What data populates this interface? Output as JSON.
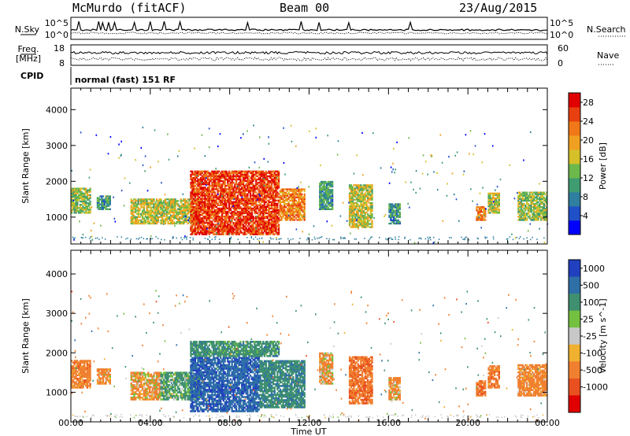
{
  "header": {
    "station": "McMurdo (fitACF)",
    "beam": "Beam 00",
    "date": "23/Aug/2015"
  },
  "mini_panels": {
    "nsky_label": "N.Sky",
    "nsearch_label": "N.Search",
    "freq_label_1": "Freq.",
    "freq_label_2": "[MHz]",
    "nave_label": "Nave",
    "cpid_label": "CPID",
    "cpid_text": "normal (fast) 151 RF",
    "noise_ticks": [
      "10^5",
      "10^0"
    ],
    "freq_ticks": [
      "18",
      "8"
    ],
    "nave_ticks": [
      "60",
      "0"
    ]
  },
  "colors": {
    "power_scale": [
      "#0000ff",
      "#2050c8",
      "#2f7fa0",
      "#3f9c70",
      "#6cb84a",
      "#d6c02a",
      "#f0a020",
      "#f07818",
      "#e84010",
      "#e00000"
    ],
    "velocity_scale": [
      "#2040c0",
      "#2f6fa8",
      "#3f9070",
      "#74c040",
      "#c8c8c8",
      "#f0b030",
      "#f08030",
      "#e85020",
      "#e00000"
    ]
  },
  "chart_data": [
    {
      "type": "heatmap",
      "name": "power",
      "ylabel": "Slant Range [km]",
      "xlabel": "Time UT",
      "x_ticks": [
        "00:00",
        "04:00",
        "08:00",
        "12:00",
        "16:00",
        "20:00",
        "00:00"
      ],
      "y_ticks": [
        1000,
        2000,
        3000,
        4000
      ],
      "ylim": [
        250,
        4600
      ],
      "xlim_hours": [
        0,
        24
      ],
      "colorbar": {
        "label": "Power [dB]",
        "ticks": [
          4,
          8,
          12,
          16,
          20,
          24,
          28
        ],
        "range": [
          0,
          30
        ]
      },
      "echo_regions": [
        {
          "t0": 0.0,
          "t1": 1.0,
          "r0": 1100,
          "r1": 1800,
          "level": 14
        },
        {
          "t0": 1.3,
          "t1": 2.0,
          "r0": 1200,
          "r1": 1600,
          "level": 10
        },
        {
          "t0": 3.0,
          "t1": 6.5,
          "r0": 800,
          "r1": 1500,
          "level": 16
        },
        {
          "t0": 6.0,
          "t1": 10.5,
          "r0": 500,
          "r1": 2300,
          "level": 26
        },
        {
          "t0": 10.5,
          "t1": 11.8,
          "r0": 900,
          "r1": 1800,
          "level": 22
        },
        {
          "t0": 12.5,
          "t1": 13.2,
          "r0": 1200,
          "r1": 2000,
          "level": 10
        },
        {
          "t0": 14.0,
          "t1": 15.2,
          "r0": 700,
          "r1": 1900,
          "level": 16
        },
        {
          "t0": 16.0,
          "t1": 16.6,
          "r0": 800,
          "r1": 1400,
          "level": 10
        },
        {
          "t0": 20.4,
          "t1": 20.9,
          "r0": 900,
          "r1": 1300,
          "level": 22
        },
        {
          "t0": 21.0,
          "t1": 21.6,
          "r0": 1100,
          "r1": 1700,
          "level": 16
        },
        {
          "t0": 22.5,
          "t1": 24.0,
          "r0": 900,
          "r1": 1700,
          "level": 14
        }
      ]
    },
    {
      "type": "heatmap",
      "name": "velocity",
      "ylabel": "Slant Range [km]",
      "xlabel": "Time UT",
      "x_ticks": [
        "00:00",
        "04:00",
        "08:00",
        "12:00",
        "16:00",
        "20:00",
        "00:00"
      ],
      "y_ticks": [
        1000,
        2000,
        3000,
        4000
      ],
      "ylim": [
        250,
        4600
      ],
      "xlim_hours": [
        0,
        24
      ],
      "colorbar": {
        "label": "Velocity [m s^-1]",
        "ticks": [
          1000,
          500,
          100,
          25,
          -25,
          -100,
          -500,
          -1000
        ]
      },
      "echo_regions": [
        {
          "t0": 0.0,
          "t1": 1.0,
          "r0": 1100,
          "r1": 1800,
          "vel": -300
        },
        {
          "t0": 1.3,
          "t1": 2.0,
          "r0": 1200,
          "r1": 1600,
          "vel": -200
        },
        {
          "t0": 3.0,
          "t1": 4.5,
          "r0": 800,
          "r1": 1500,
          "vel": -150
        },
        {
          "t0": 4.5,
          "t1": 6.5,
          "r0": 800,
          "r1": 1500,
          "vel": 200
        },
        {
          "t0": 6.0,
          "t1": 9.5,
          "r0": 500,
          "r1": 1900,
          "vel": 900
        },
        {
          "t0": 6.0,
          "t1": 10.5,
          "r0": 1900,
          "r1": 2300,
          "vel": 300
        },
        {
          "t0": 9.5,
          "t1": 11.8,
          "r0": 600,
          "r1": 1800,
          "vel": 400
        },
        {
          "t0": 12.5,
          "t1": 13.2,
          "r0": 1200,
          "r1": 2000,
          "vel": -150
        },
        {
          "t0": 14.0,
          "t1": 15.2,
          "r0": 700,
          "r1": 1900,
          "vel": -400
        },
        {
          "t0": 16.0,
          "t1": 16.6,
          "r0": 800,
          "r1": 1400,
          "vel": -200
        },
        {
          "t0": 20.4,
          "t1": 20.9,
          "r0": 900,
          "r1": 1300,
          "vel": -400
        },
        {
          "t0": 21.0,
          "t1": 21.6,
          "r0": 1100,
          "r1": 1700,
          "vel": -300
        },
        {
          "t0": 22.5,
          "t1": 24.0,
          "r0": 900,
          "r1": 1700,
          "vel": -250
        }
      ]
    }
  ]
}
